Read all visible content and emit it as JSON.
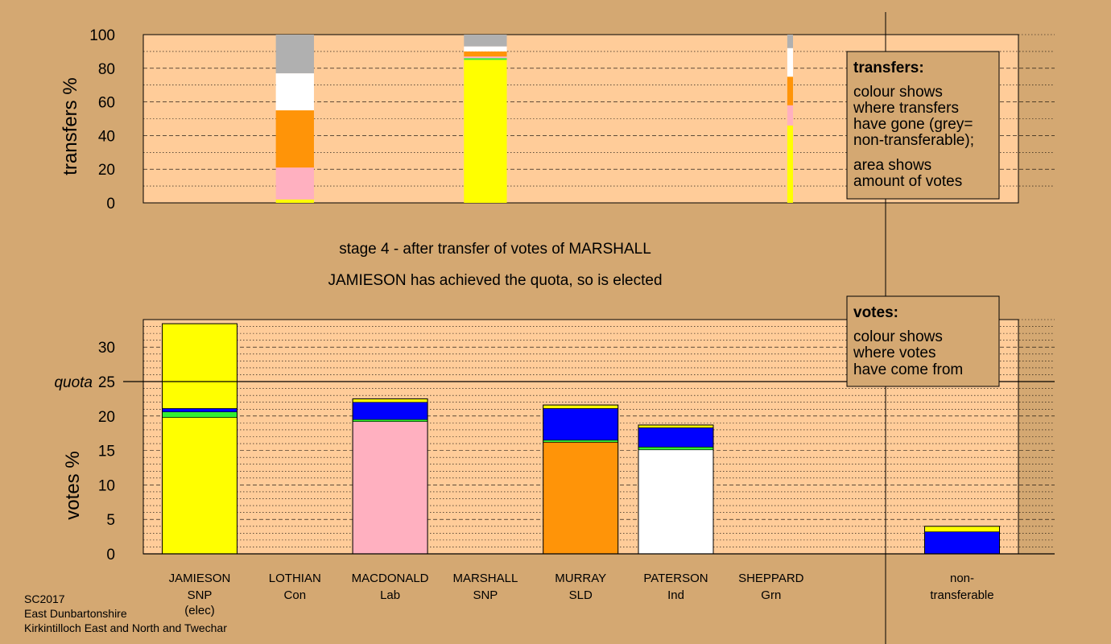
{
  "stage_title": "stage 4 - after transfer of votes of MARSHALL",
  "stage_subtitle": "JAMIESON has achieved the quota, so is elected",
  "footer": [
    "SC2017",
    "East Dunbartonshire",
    "Kirkintilloch East and North and Twechar"
  ],
  "colors": {
    "background": "#d4a872",
    "plot_bg": "#ffcc99",
    "SNP": "#ffff00",
    "Con": "#0000ff",
    "Lab": "#ffb0c0",
    "SLD": "#ff9408",
    "Ind": "#ffffff",
    "Grn": "#33ee33",
    "NonTransferable": "#b0b0b0"
  },
  "transfers_legend": {
    "title": "transfers:",
    "lines1": [
      "colour shows",
      "where transfers",
      "have gone (grey=",
      "non-transferable);"
    ],
    "lines2": [
      "area shows",
      "amount of votes"
    ]
  },
  "votes_legend": {
    "title": "votes:",
    "lines": [
      "colour shows",
      "where votes",
      "have come from"
    ]
  },
  "chart_data": [
    {
      "type": "bar",
      "stacked": true,
      "ylabel": "transfers %",
      "ylim": [
        0,
        100
      ],
      "yticks": [
        0,
        20,
        40,
        60,
        80,
        100
      ],
      "bars": [
        {
          "column": 1,
          "width": 0.4,
          "segments": [
            {
              "party": "SNP",
              "value": 2
            },
            {
              "party": "Lab",
              "value": 19
            },
            {
              "party": "SLD",
              "value": 34
            },
            {
              "party": "Ind",
              "value": 22
            },
            {
              "party": "NonTransferable",
              "value": 23
            }
          ]
        },
        {
          "column": 3,
          "width": 0.45,
          "segments": [
            {
              "party": "SNP",
              "value": 85
            },
            {
              "party": "Grn",
              "value": 1
            },
            {
              "party": "Lab",
              "value": 1
            },
            {
              "party": "SLD",
              "value": 3
            },
            {
              "party": "Ind",
              "value": 3
            },
            {
              "party": "NonTransferable",
              "value": 7
            }
          ]
        },
        {
          "column": 6.2,
          "width": 0.06,
          "segments": [
            {
              "party": "SNP",
              "value": 46
            },
            {
              "party": "Lab",
              "value": 12
            },
            {
              "party": "SLD",
              "value": 17
            },
            {
              "party": "Ind",
              "value": 17
            },
            {
              "party": "NonTransferable",
              "value": 8
            }
          ]
        }
      ]
    },
    {
      "type": "bar",
      "stacked": true,
      "ylabel": "votes %",
      "ylim": [
        0,
        34
      ],
      "yticks": [
        0,
        5,
        10,
        15,
        20,
        25,
        30
      ],
      "quota": 25,
      "quota_label": "quota",
      "candidates": [
        {
          "name": "JAMIESON",
          "party": "SNP",
          "note": "(elec)",
          "segments": [
            {
              "party": "SNP",
              "value": 19.8
            },
            {
              "party": "Grn",
              "value": 0.8
            },
            {
              "party": "Con",
              "value": 0.5
            },
            {
              "party": "SNP",
              "value": 12.3
            }
          ]
        },
        {
          "name": "LOTHIAN",
          "party": "Con",
          "note": "",
          "segments": []
        },
        {
          "name": "MACDONALD",
          "party": "Lab",
          "note": "",
          "segments": [
            {
              "party": "Lab",
              "value": 19.2
            },
            {
              "party": "Grn",
              "value": 0.3
            },
            {
              "party": "Con",
              "value": 2.5
            },
            {
              "party": "SNP",
              "value": 0.5
            }
          ]
        },
        {
          "name": "MARSHALL",
          "party": "SNP",
          "note": "",
          "segments": []
        },
        {
          "name": "MURRAY",
          "party": "SLD",
          "note": "",
          "segments": [
            {
              "party": "SLD",
              "value": 16.2
            },
            {
              "party": "Grn",
              "value": 0.3
            },
            {
              "party": "Con",
              "value": 4.6
            },
            {
              "party": "SNP",
              "value": 0.5
            }
          ]
        },
        {
          "name": "PATERSON",
          "party": "Ind",
          "note": "",
          "segments": [
            {
              "party": "Ind",
              "value": 15.1
            },
            {
              "party": "Grn",
              "value": 0.4
            },
            {
              "party": "Con",
              "value": 2.8
            },
            {
              "party": "SNP",
              "value": 0.4
            }
          ]
        },
        {
          "name": "SHEPPARD",
          "party": "Grn",
          "note": "",
          "segments": []
        }
      ],
      "non_transferable": {
        "label": [
          "non-",
          "transferable"
        ],
        "segments": [
          {
            "party": "Con",
            "value": 3.2
          },
          {
            "party": "SNP",
            "value": 0.8
          }
        ]
      }
    }
  ]
}
